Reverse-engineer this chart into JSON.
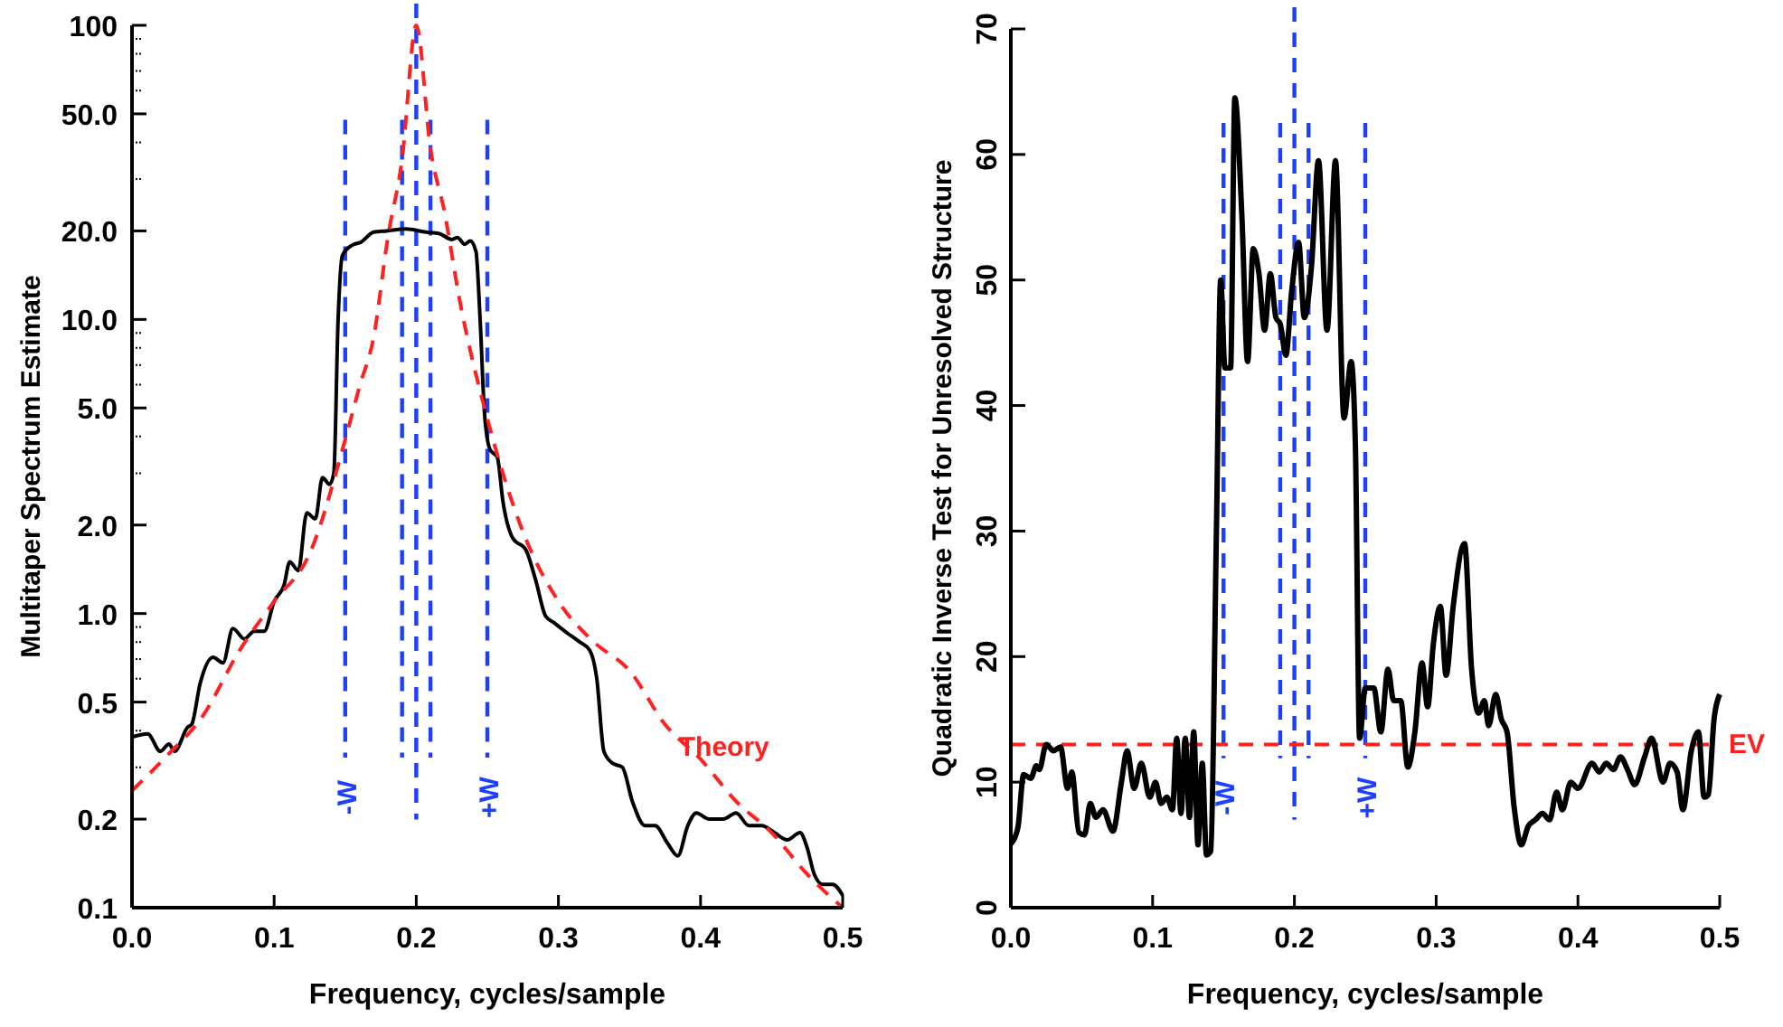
{
  "chart_data": [
    {
      "type": "line",
      "xlabel": "Frequency, cycles/sample",
      "ylabel": "Multitaper Spectrum Estimate",
      "log": "y",
      "xlim": [
        0,
        0.5
      ],
      "ylim": [
        0.1,
        100
      ],
      "xticks": [
        {
          "value": 0,
          "label": "0.0"
        },
        0.1,
        0.2,
        0.3,
        0.4,
        0.5
      ],
      "yticks": [
        {
          "value": 0.1,
          "label": "0.1"
        },
        {
          "value": 0.2,
          "label": "0.2"
        },
        {
          "value": 0.3,
          "label": null
        },
        {
          "value": 0.4,
          "label": null
        },
        {
          "value": 0.5,
          "label": "0.5"
        },
        {
          "value": 0.6,
          "label": null
        },
        {
          "value": 0.7,
          "label": null
        },
        {
          "value": 0.8,
          "label": null
        },
        {
          "value": 0.9,
          "label": null
        },
        {
          "value": 1,
          "label": "1.0"
        },
        {
          "value": 2,
          "label": "2.0"
        },
        {
          "value": 3,
          "label": null
        },
        {
          "value": 4,
          "label": null
        },
        {
          "value": 5,
          "label": "5.0"
        },
        {
          "value": 6,
          "label": null
        },
        {
          "value": 7,
          "label": null
        },
        {
          "value": 8,
          "label": null
        },
        {
          "value": 9,
          "label": null
        },
        {
          "value": 10,
          "label": "10.0"
        },
        {
          "value": 20,
          "label": "20.0"
        },
        {
          "value": 30,
          "label": null
        },
        {
          "value": 40,
          "label": null
        },
        {
          "value": 50,
          "label": "50.0"
        },
        {
          "value": 60,
          "label": null
        },
        {
          "value": 70,
          "label": null
        },
        {
          "value": 80,
          "label": null
        },
        {
          "value": 90,
          "label": null
        },
        100
      ],
      "grid": false,
      "series": [
        {
          "color": "#000000",
          "x": [
            0,
            0.011,
            0.02,
            0.026,
            0.03,
            0.039,
            0.042,
            0.048,
            0.057,
            0.064,
            0.071,
            0.079,
            0.086,
            0.093,
            0.1,
            0.107,
            0.111,
            0.117,
            0.123,
            0.129,
            0.134,
            0.139,
            0.142,
            0.145,
            0.148,
            0.155,
            0.161,
            0.17,
            0.179,
            0.193,
            0.207,
            0.216,
            0.225,
            0.229,
            0.234,
            0.238,
            0.242,
            0.245,
            0.248,
            0.252,
            0.257,
            0.261,
            0.268,
            0.277,
            0.284,
            0.291,
            0.297,
            0.306,
            0.315,
            0.322,
            0.327,
            0.332,
            0.338,
            0.345,
            0.352,
            0.361,
            0.368,
            0.377,
            0.384,
            0.391,
            0.397,
            0.406,
            0.416,
            0.425,
            0.434,
            0.443,
            0.452,
            0.461,
            0.47,
            0.475,
            0.48,
            0.486,
            0.493,
            0.5
          ],
          "values": [
            0.38,
            0.39,
            0.34,
            0.36,
            0.34,
            0.41,
            0.42,
            0.58,
            0.71,
            0.68,
            0.89,
            0.82,
            0.87,
            0.87,
            1.1,
            1.25,
            1.5,
            1.4,
            2.2,
            2.1,
            2.9,
            2.75,
            3,
            10,
            16.5,
            17.9,
            18.3,
            19.8,
            20,
            20.3,
            19.8,
            19.6,
            18.7,
            19,
            18,
            18.5,
            17,
            9.8,
            4.8,
            3.6,
            3.4,
            2.4,
            1.8,
            1.65,
            1.3,
            0.98,
            0.93,
            0.86,
            0.8,
            0.75,
            0.6,
            0.34,
            0.31,
            0.3,
            0.23,
            0.19,
            0.19,
            0.165,
            0.15,
            0.19,
            0.21,
            0.2,
            0.2,
            0.21,
            0.19,
            0.19,
            0.18,
            0.17,
            0.18,
            0.16,
            0.13,
            0.12,
            0.12,
            0.11
          ]
        },
        {
          "name": "Theory",
          "color": "#ff2020",
          "line_style": "dashed",
          "x": [
            0,
            0.025,
            0.05,
            0.075,
            0.1,
            0.125,
            0.15,
            0.16,
            0.17,
            0.18,
            0.19,
            0.2,
            0.21,
            0.22,
            0.23,
            0.25,
            0.275,
            0.3,
            0.325,
            0.35,
            0.375,
            0.4,
            0.425,
            0.45,
            0.475,
            0.5
          ],
          "values": [
            0.25,
            0.33,
            0.45,
            0.74,
            1.1,
            1.6,
            3.9,
            5.9,
            8.7,
            19,
            35,
            100,
            38,
            23,
            12,
            4.6,
            1.9,
            1.1,
            0.8,
            0.64,
            0.42,
            0.32,
            0.23,
            0.18,
            0.13,
            0.1
          ]
        }
      ],
      "ref_lines": [
        {
          "axis": "x",
          "value": 0.15,
          "label": "-W",
          "color": "#1f3fff",
          "line_style": "dashed"
        },
        {
          "axis": "x",
          "value": 0.19,
          "color": "#1f3fff",
          "line_style": "dashed"
        },
        {
          "axis": "x",
          "value": 0.2,
          "color": "#1f3fff",
          "line_style": "dashed"
        },
        {
          "axis": "x",
          "value": 0.21,
          "color": "#1f3fff",
          "line_style": "dashed"
        },
        {
          "axis": "x",
          "value": 0.25,
          "label": "+W",
          "color": "#1f3fff",
          "line_style": "dashed"
        }
      ]
    },
    {
      "type": "line",
      "xlabel": "Frequency, cycles/sample",
      "ylabel": "Quadratic Inverse Test for Unresolved Structure",
      "xlim": [
        0,
        0.5
      ],
      "ylim": [
        0,
        70
      ],
      "xticks": [
        {
          "value": 0,
          "label": "0.0"
        },
        0.1,
        0.2,
        0.3,
        0.4,
        0.5
      ],
      "yticks": [
        0,
        10,
        20,
        30,
        40,
        50,
        60,
        70
      ],
      "grid": false,
      "series": [
        {
          "color": "#000000",
          "x": [
            0,
            0.005,
            0.009,
            0.014,
            0.018,
            0.02,
            0.025,
            0.03,
            0.035,
            0.04,
            0.043,
            0.048,
            0.052,
            0.056,
            0.06,
            0.065,
            0.072,
            0.078,
            0.082,
            0.087,
            0.092,
            0.098,
            0.102,
            0.106,
            0.11,
            0.114,
            0.117,
            0.12,
            0.123,
            0.126,
            0.129,
            0.132,
            0.135,
            0.138,
            0.141,
            0.145,
            0.148,
            0.151,
            0.155,
            0.158,
            0.163,
            0.167,
            0.171,
            0.175,
            0.179,
            0.183,
            0.187,
            0.19,
            0.194,
            0.198,
            0.203,
            0.207,
            0.212,
            0.217,
            0.223,
            0.229,
            0.235,
            0.24,
            0.243,
            0.246,
            0.25,
            0.256,
            0.261,
            0.266,
            0.27,
            0.275,
            0.28,
            0.285,
            0.29,
            0.294,
            0.298,
            0.303,
            0.307,
            0.312,
            0.32,
            0.325,
            0.33,
            0.334,
            0.337,
            0.342,
            0.346,
            0.35,
            0.355,
            0.36,
            0.365,
            0.37,
            0.375,
            0.38,
            0.385,
            0.389,
            0.395,
            0.4,
            0.41,
            0.415,
            0.42,
            0.425,
            0.43,
            0.435,
            0.44,
            0.447,
            0.452,
            0.46,
            0.465,
            0.47,
            0.474,
            0.48,
            0.485,
            0.489,
            0.492,
            0.496,
            0.5
          ],
          "values": [
            5.1,
            6.4,
            10.6,
            10.3,
            11.3,
            11,
            13,
            12.5,
            12.8,
            9.5,
            10.8,
            6,
            5.8,
            8.3,
            7.2,
            7.8,
            6.1,
            10,
            12.5,
            9.5,
            11.5,
            8.8,
            10,
            8.3,
            8.8,
            7.8,
            13.5,
            7.5,
            13.5,
            7.2,
            14,
            5,
            11.5,
            4.2,
            4.5,
            30,
            50,
            43,
            43,
            64.5,
            55,
            43.5,
            52.5,
            50.5,
            46,
            50.5,
            47,
            46.5,
            44,
            49,
            53,
            47,
            51,
            59.5,
            46,
            59.5,
            39,
            43.5,
            37,
            13.5,
            17.5,
            17.5,
            14,
            19,
            16.5,
            16.5,
            11.2,
            14,
            19.5,
            16,
            21,
            24,
            18.5,
            24,
            29,
            19,
            15.5,
            16.5,
            14.5,
            17,
            15,
            14,
            8,
            5,
            6.5,
            7,
            7.5,
            7,
            9.2,
            7.8,
            10,
            9.5,
            11.5,
            10.8,
            11.5,
            11,
            12,
            11,
            9.8,
            12,
            13.5,
            10,
            11.5,
            10.8,
            7.8,
            12.5,
            14,
            8.8,
            9,
            15,
            17
          ]
        }
      ],
      "ref_lines": [
        {
          "axis": "x",
          "value": 0.15,
          "label": "-W",
          "color": "#1f3fff",
          "line_style": "dashed"
        },
        {
          "axis": "x",
          "value": 0.19,
          "color": "#1f3fff",
          "line_style": "dashed"
        },
        {
          "axis": "x",
          "value": 0.2,
          "color": "#1f3fff",
          "line_style": "dashed"
        },
        {
          "axis": "x",
          "value": 0.21,
          "color": "#1f3fff",
          "line_style": "dashed"
        },
        {
          "axis": "x",
          "value": 0.25,
          "label": "+W",
          "color": "#1f3fff",
          "line_style": "dashed"
        },
        {
          "axis": "y",
          "value": 13,
          "label": "EV",
          "color": "#ff2020",
          "line_style": "dashed"
        }
      ]
    }
  ]
}
